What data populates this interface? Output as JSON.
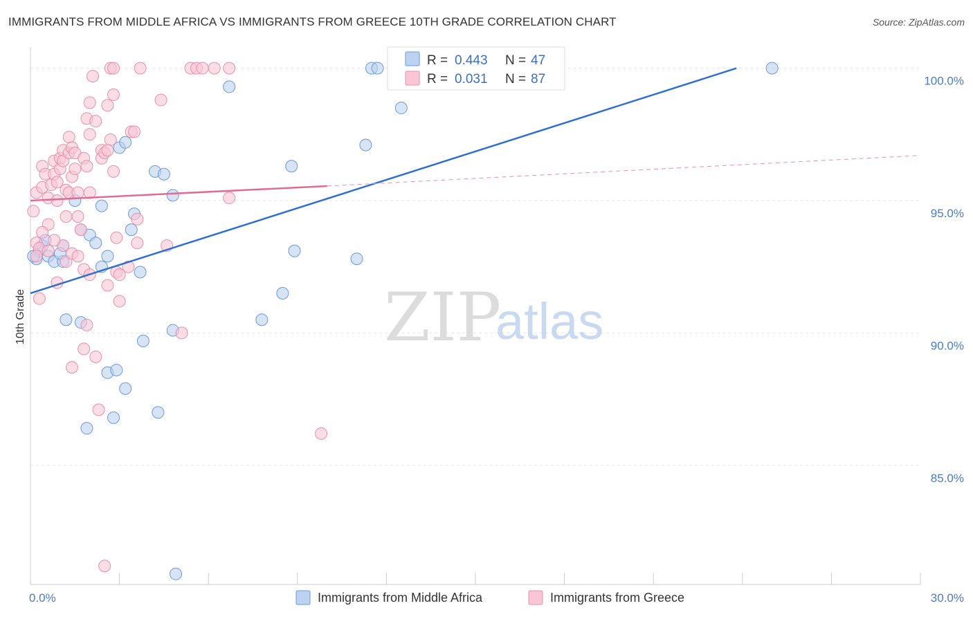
{
  "header": {
    "title": "IMMIGRANTS FROM MIDDLE AFRICA VS IMMIGRANTS FROM GREECE 10TH GRADE CORRELATION CHART",
    "source": "Source: ZipAtlas.com"
  },
  "watermark": {
    "zip": "ZIP",
    "atlas": "atlas"
  },
  "chart_data": {
    "type": "scatter",
    "ylabel": "10th Grade",
    "xlim": [
      0,
      30
    ],
    "ylim": [
      80.5,
      100.8
    ],
    "x_tick_labels": [
      {
        "value": 0,
        "label": "0.0%"
      },
      {
        "value": 30,
        "label": "30.0%"
      }
    ],
    "y_tick_labels": [
      {
        "value": 100,
        "label": "100.0%"
      },
      {
        "value": 95,
        "label": "95.0%"
      },
      {
        "value": 90,
        "label": "90.0%"
      },
      {
        "value": 85,
        "label": "85.0%"
      }
    ],
    "grid": true,
    "legend_position": "top-center",
    "series": [
      {
        "name": "Immigrants from Middle Africa",
        "color": "#6b9ad8",
        "fill": "#bcd2f0",
        "R": "0.443",
        "N": "47",
        "trend": {
          "x": [
            0,
            23.8
          ],
          "y": [
            91.5,
            100.0
          ],
          "dashed_extension": false
        },
        "points": [
          [
            0.2,
            92.8
          ],
          [
            0.3,
            93.1
          ],
          [
            0.4,
            93.3
          ],
          [
            0.5,
            93.5
          ],
          [
            0.6,
            92.9
          ],
          [
            0.8,
            92.7
          ],
          [
            1.1,
            92.7
          ],
          [
            1.1,
            93.3
          ],
          [
            1.5,
            95.0
          ],
          [
            1.7,
            93.9
          ],
          [
            2.0,
            93.7
          ],
          [
            2.2,
            93.4
          ],
          [
            2.4,
            92.5
          ],
          [
            2.4,
            94.8
          ],
          [
            2.6,
            92.9
          ],
          [
            3.0,
            97.0
          ],
          [
            3.2,
            97.2
          ],
          [
            3.4,
            93.9
          ],
          [
            3.5,
            94.5
          ],
          [
            3.7,
            92.3
          ],
          [
            4.2,
            96.1
          ],
          [
            4.5,
            96.0
          ],
          [
            4.8,
            95.2
          ],
          [
            3.8,
            89.7
          ],
          [
            4.8,
            90.1
          ],
          [
            1.2,
            90.5
          ],
          [
            1.7,
            90.4
          ],
          [
            2.6,
            88.5
          ],
          [
            2.9,
            88.6
          ],
          [
            3.2,
            87.9
          ],
          [
            2.8,
            86.8
          ],
          [
            4.3,
            87.0
          ],
          [
            1.9,
            86.4
          ],
          [
            4.9,
            80.9
          ],
          [
            6.7,
            99.3
          ],
          [
            11.5,
            100.0
          ],
          [
            11.7,
            100.0
          ],
          [
            12.5,
            98.5
          ],
          [
            11.3,
            97.1
          ],
          [
            8.8,
            96.3
          ],
          [
            8.9,
            93.1
          ],
          [
            11.0,
            92.8
          ],
          [
            8.5,
            91.5
          ],
          [
            7.8,
            90.5
          ],
          [
            25.0,
            100.0
          ],
          [
            0.1,
            92.9
          ],
          [
            1.0,
            93.0
          ]
        ]
      },
      {
        "name": "Immigrants from Greece",
        "color": "#e691ad",
        "fill": "#f8c6d5",
        "R": "0.031",
        "N": "87",
        "trend": {
          "x": [
            0,
            10.0
          ],
          "y": [
            95.0,
            95.55
          ],
          "dashed_x": [
            10.0,
            29.9
          ],
          "dashed_y": [
            95.55,
            96.7
          ]
        },
        "points": [
          [
            0.1,
            94.6
          ],
          [
            0.2,
            95.3
          ],
          [
            0.2,
            93.4
          ],
          [
            0.3,
            93.2
          ],
          [
            0.3,
            91.3
          ],
          [
            0.4,
            96.3
          ],
          [
            0.4,
            95.5
          ],
          [
            0.5,
            96.0
          ],
          [
            0.6,
            95.1
          ],
          [
            0.6,
            94.1
          ],
          [
            0.7,
            95.6
          ],
          [
            0.8,
            96.5
          ],
          [
            0.8,
            96.0
          ],
          [
            0.9,
            95.7
          ],
          [
            0.9,
            95.0
          ],
          [
            1.0,
            96.6
          ],
          [
            1.0,
            96.2
          ],
          [
            1.1,
            96.9
          ],
          [
            1.1,
            96.5
          ],
          [
            1.2,
            95.4
          ],
          [
            1.2,
            94.4
          ],
          [
            1.3,
            95.3
          ],
          [
            1.3,
            96.8
          ],
          [
            1.3,
            97.4
          ],
          [
            1.4,
            95.9
          ],
          [
            1.4,
            97.0
          ],
          [
            1.5,
            96.8
          ],
          [
            1.5,
            96.2
          ],
          [
            1.6,
            95.3
          ],
          [
            1.6,
            94.4
          ],
          [
            1.7,
            93.9
          ],
          [
            1.8,
            96.6
          ],
          [
            1.9,
            98.1
          ],
          [
            1.9,
            96.3
          ],
          [
            2.0,
            97.5
          ],
          [
            2.0,
            95.3
          ],
          [
            2.0,
            98.7
          ],
          [
            2.1,
            99.7
          ],
          [
            2.2,
            98.0
          ],
          [
            2.4,
            96.9
          ],
          [
            2.4,
            96.6
          ],
          [
            2.5,
            96.8
          ],
          [
            2.6,
            98.6
          ],
          [
            2.7,
            97.3
          ],
          [
            2.8,
            99.0
          ],
          [
            2.8,
            96.1
          ],
          [
            2.9,
            92.3
          ],
          [
            3.0,
            91.2
          ],
          [
            3.3,
            92.5
          ],
          [
            3.4,
            97.6
          ],
          [
            3.5,
            97.6
          ],
          [
            3.6,
            94.3
          ],
          [
            3.6,
            93.4
          ],
          [
            3.7,
            100.0
          ],
          [
            4.4,
            98.8
          ],
          [
            4.6,
            93.3
          ],
          [
            5.1,
            90.0
          ],
          [
            5.4,
            100.0
          ],
          [
            5.6,
            100.0
          ],
          [
            5.8,
            100.0
          ],
          [
            6.2,
            100.0
          ],
          [
            6.7,
            95.1
          ],
          [
            6.7,
            100.0
          ],
          [
            2.7,
            100.0
          ],
          [
            2.8,
            100.0
          ],
          [
            1.9,
            90.3
          ],
          [
            1.8,
            89.4
          ],
          [
            2.2,
            89.1
          ],
          [
            1.4,
            88.7
          ],
          [
            2.3,
            87.1
          ],
          [
            2.5,
            81.2
          ],
          [
            9.8,
            86.2
          ],
          [
            1.1,
            93.3
          ],
          [
            1.2,
            92.7
          ],
          [
            1.4,
            93.0
          ],
          [
            1.6,
            92.9
          ],
          [
            1.8,
            92.4
          ],
          [
            2.0,
            92.2
          ],
          [
            0.9,
            91.9
          ],
          [
            2.6,
            91.8
          ],
          [
            2.9,
            93.6
          ],
          [
            3.0,
            92.2
          ],
          [
            0.6,
            93.1
          ],
          [
            0.8,
            93.5
          ],
          [
            0.4,
            93.8
          ],
          [
            0.2,
            92.9
          ],
          [
            2.6,
            96.9
          ]
        ]
      }
    ]
  }
}
